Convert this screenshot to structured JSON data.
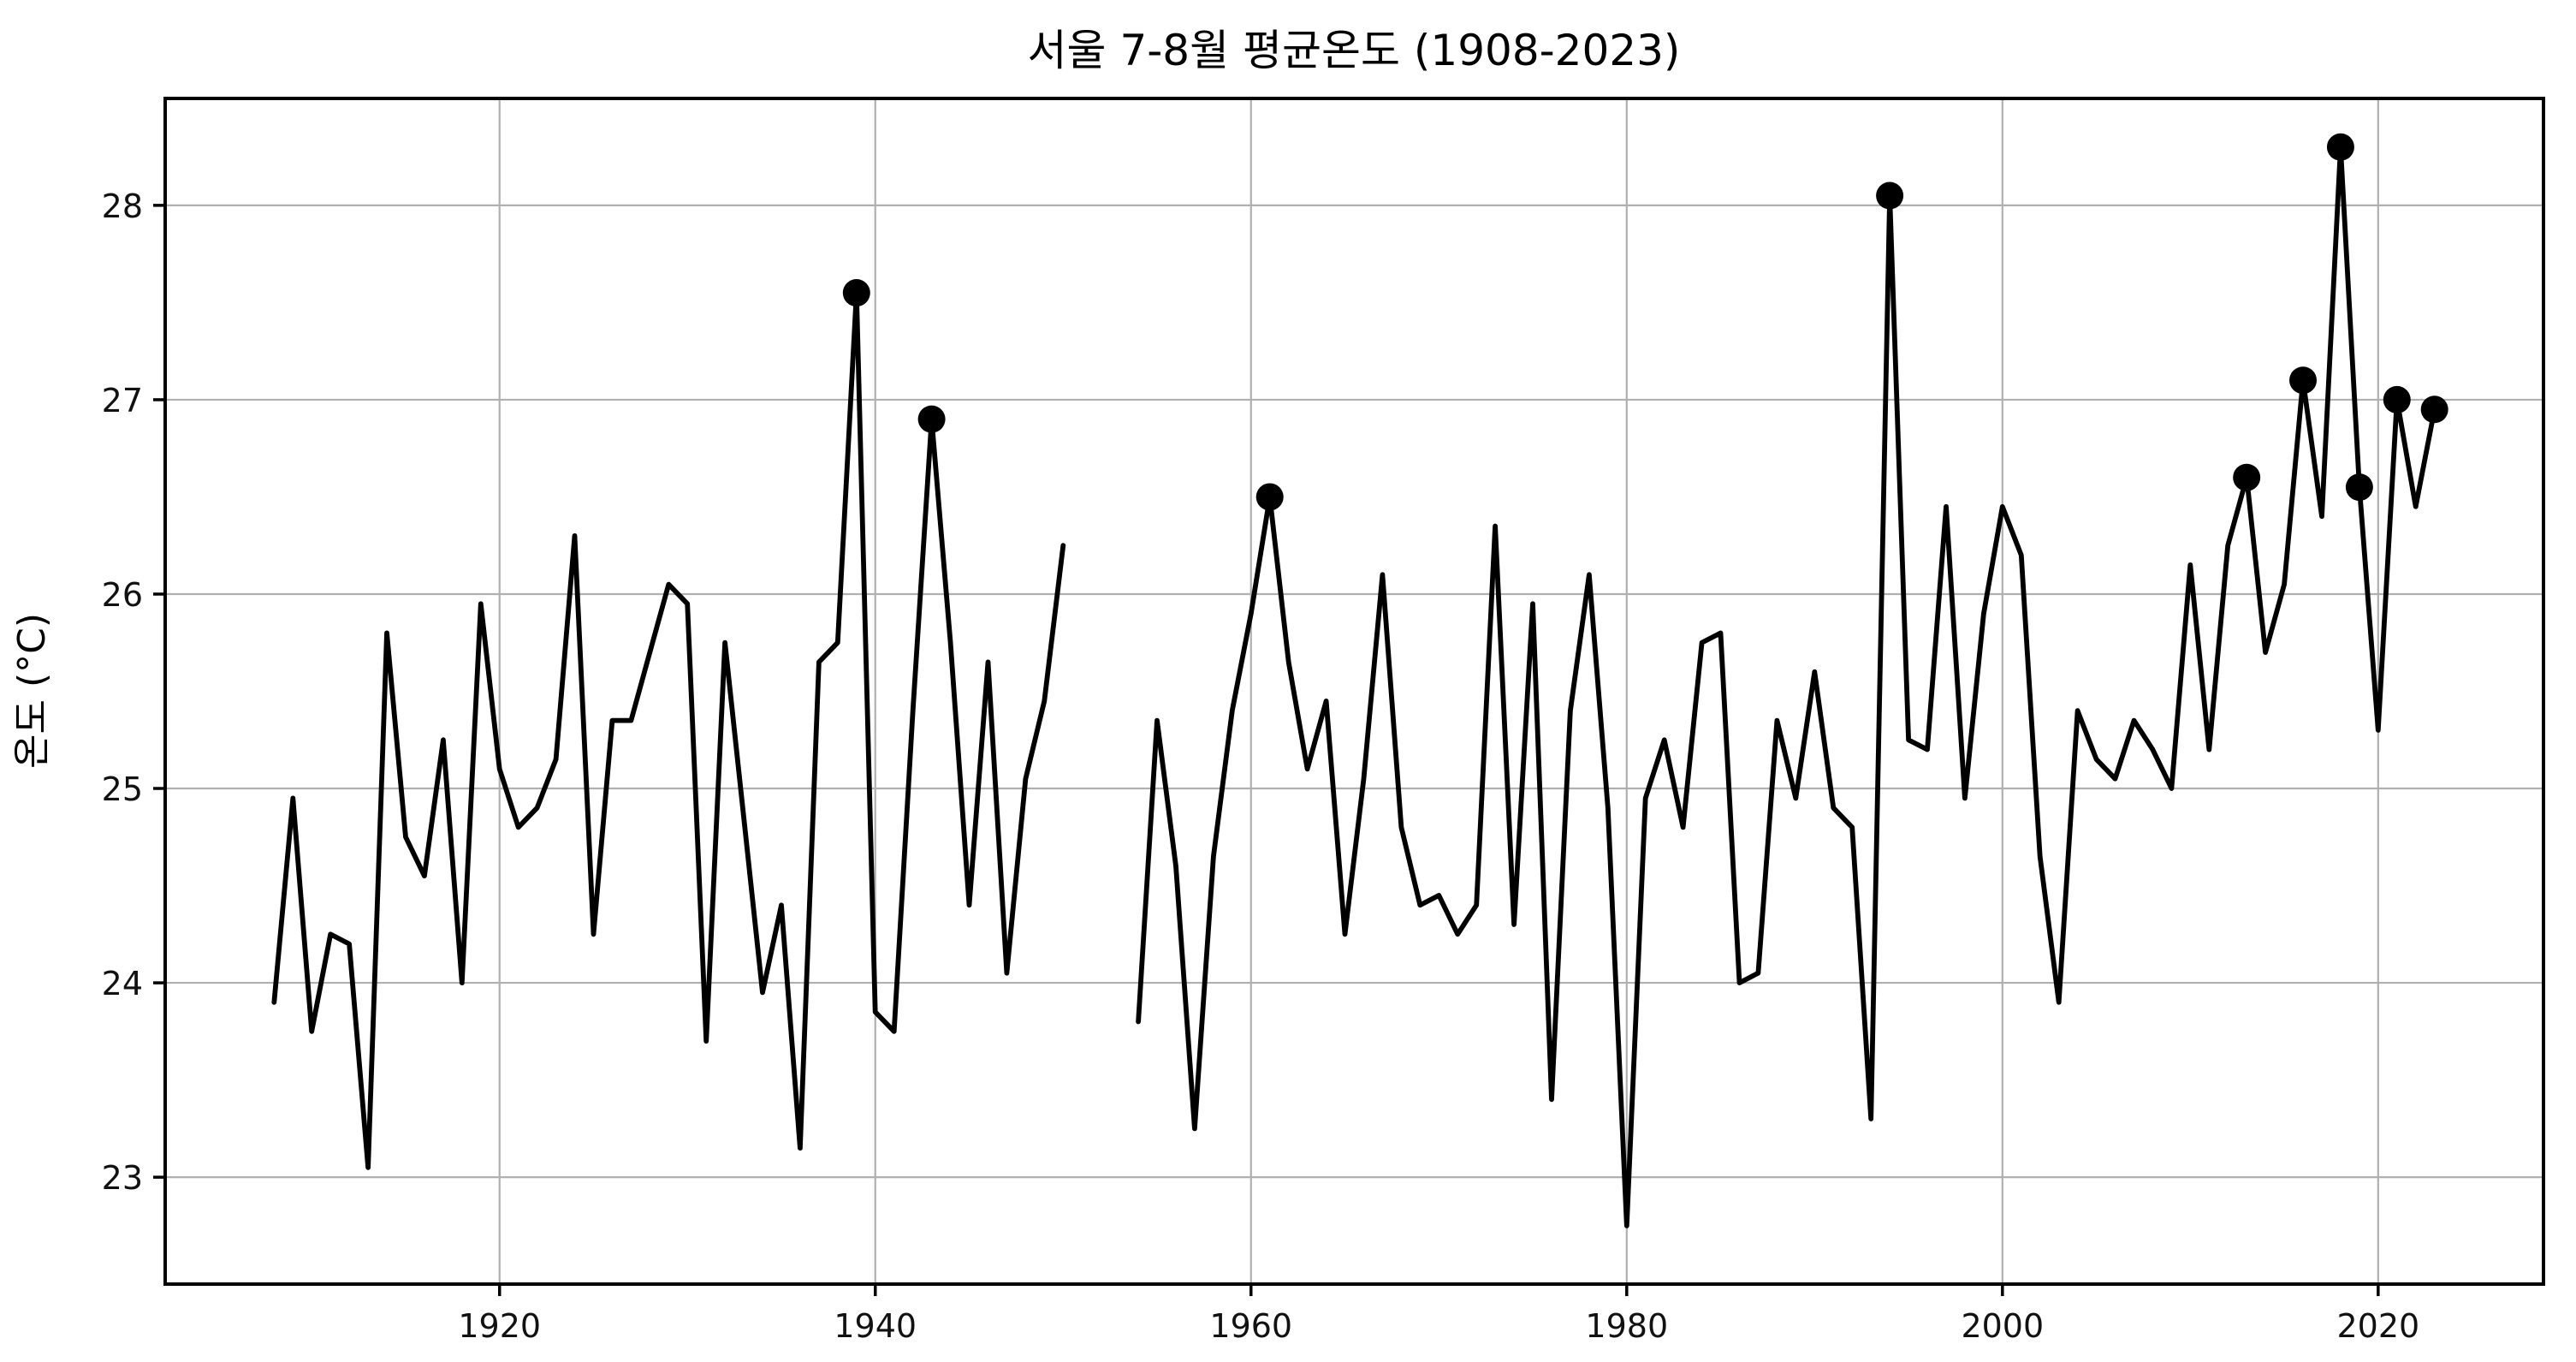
{
  "figure": {
    "title": "서울 7-8월 평균온도 (1908-2023)",
    "ylabel": "온도 (°C)",
    "xlabel": ""
  },
  "chart_data": {
    "type": "line",
    "title": "서울 7-8월 평균온도 (1908-2023)",
    "xlabel": "",
    "ylabel": "온도 (°C)",
    "grid": true,
    "legend": "none",
    "line_color": "#000000",
    "marker_color": "#000000",
    "grid_color": "#b0b0b0",
    "spine_color": "#000000",
    "xlim": [
      1902.2,
      2028.8
    ],
    "ylim": [
      22.45,
      28.55
    ],
    "x_ticks": [
      1920,
      1940,
      1960,
      1980,
      2000,
      2020
    ],
    "y_ticks": [
      23,
      24,
      25,
      26,
      27,
      28
    ],
    "missing_years": [
      1951,
      1952,
      1953
    ],
    "years": [
      1908,
      1909,
      1910,
      1911,
      1912,
      1913,
      1914,
      1915,
      1916,
      1917,
      1918,
      1919,
      1920,
      1921,
      1922,
      1923,
      1924,
      1925,
      1926,
      1927,
      1928,
      1929,
      1930,
      1931,
      1932,
      1933,
      1934,
      1935,
      1936,
      1937,
      1938,
      1939,
      1940,
      1941,
      1942,
      1943,
      1944,
      1945,
      1946,
      1947,
      1948,
      1949,
      1950,
      1951,
      1952,
      1953,
      1954,
      1955,
      1956,
      1957,
      1958,
      1959,
      1960,
      1961,
      1962,
      1963,
      1964,
      1965,
      1966,
      1967,
      1968,
      1969,
      1970,
      1971,
      1972,
      1973,
      1974,
      1975,
      1976,
      1977,
      1978,
      1979,
      1980,
      1981,
      1982,
      1983,
      1984,
      1985,
      1986,
      1987,
      1988,
      1989,
      1990,
      1991,
      1992,
      1993,
      1994,
      1995,
      1996,
      1997,
      1998,
      1999,
      2000,
      2001,
      2002,
      2003,
      2004,
      2005,
      2006,
      2007,
      2008,
      2009,
      2010,
      2011,
      2012,
      2013,
      2014,
      2015,
      2016,
      2017,
      2018,
      2019,
      2020,
      2021,
      2022,
      2023
    ],
    "values": [
      23.9,
      24.95,
      23.75,
      24.25,
      24.2,
      23.05,
      25.8,
      24.75,
      24.55,
      25.25,
      24.0,
      25.95,
      25.1,
      24.8,
      24.9,
      25.15,
      26.3,
      24.25,
      25.35,
      25.35,
      25.7,
      26.05,
      25.95,
      23.7,
      25.75,
      24.85,
      23.95,
      24.4,
      23.15,
      25.65,
      25.75,
      27.55,
      23.85,
      23.75,
      25.4,
      26.9,
      25.75,
      24.4,
      25.65,
      24.05,
      25.05,
      25.45,
      26.25,
      null,
      null,
      null,
      23.8,
      25.35,
      24.6,
      23.25,
      24.65,
      25.4,
      25.9,
      26.5,
      25.65,
      25.1,
      25.45,
      24.25,
      25.05,
      26.1,
      24.8,
      24.4,
      24.45,
      24.25,
      24.4,
      26.35,
      24.3,
      25.95,
      23.4,
      25.4,
      26.1,
      24.9,
      22.75,
      24.95,
      25.25,
      24.8,
      25.75,
      25.8,
      24.0,
      24.05,
      25.35,
      24.95,
      25.6,
      24.9,
      24.8,
      23.3,
      28.05,
      25.25,
      25.2,
      26.45,
      24.95,
      25.9,
      26.45,
      26.2,
      24.65,
      23.9,
      25.4,
      25.15,
      25.05,
      25.35,
      25.2,
      25.0,
      26.15,
      25.2,
      26.25,
      26.6,
      25.7,
      26.05,
      27.1,
      26.4,
      28.3,
      26.55,
      25.3,
      27.0,
      26.45,
      26.95
    ],
    "highlight_years": [
      1939,
      1943,
      1961,
      1994,
      2013,
      2016,
      2018,
      2019,
      2021,
      2023
    ],
    "highlight_values": [
      27.55,
      26.9,
      26.5,
      28.05,
      26.6,
      27.1,
      28.3,
      26.55,
      27.0,
      26.95
    ],
    "highlight_meaning": "10 warmest Jul-Aug years marked with black dots"
  }
}
